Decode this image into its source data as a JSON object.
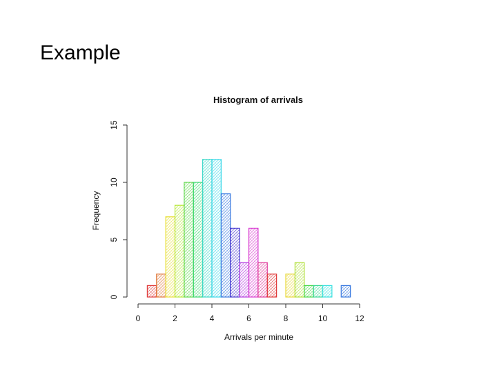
{
  "slide": {
    "title": "Example"
  },
  "chart_data": {
    "type": "bar",
    "title": "Histogram of arrivals",
    "xlabel": "Arrivals per minute",
    "ylabel": "Frequency",
    "bins": [
      {
        "start": 0.5,
        "end": 1.0,
        "value": 1,
        "color": "#e03a3a"
      },
      {
        "start": 1.0,
        "end": 1.5,
        "value": 2,
        "color": "#e0793a"
      },
      {
        "start": 1.5,
        "end": 2.0,
        "value": 7,
        "color": "#e8e03a"
      },
      {
        "start": 2.0,
        "end": 2.5,
        "value": 8,
        "color": "#b8e83a"
      },
      {
        "start": 2.5,
        "end": 3.0,
        "value": 10,
        "color": "#5ed84a"
      },
      {
        "start": 3.0,
        "end": 3.5,
        "value": 10,
        "color": "#3ad86e"
      },
      {
        "start": 3.5,
        "end": 4.0,
        "value": 12,
        "color": "#3ad8c8"
      },
      {
        "start": 4.0,
        "end": 4.5,
        "value": 12,
        "color": "#3ad8e8"
      },
      {
        "start": 4.5,
        "end": 5.0,
        "value": 9,
        "color": "#3a7ae0"
      },
      {
        "start": 5.0,
        "end": 5.5,
        "value": 6,
        "color": "#4a3ad0"
      },
      {
        "start": 5.5,
        "end": 6.0,
        "value": 3,
        "color": "#b23ae0"
      },
      {
        "start": 6.0,
        "end": 6.5,
        "value": 6,
        "color": "#d83ad0"
      },
      {
        "start": 6.5,
        "end": 7.0,
        "value": 3,
        "color": "#e03a9a"
      },
      {
        "start": 7.0,
        "end": 7.5,
        "value": 2,
        "color": "#e03a3a"
      },
      {
        "start": 7.5,
        "end": 8.0,
        "value": 0,
        "color": "#e07a3a"
      },
      {
        "start": 8.0,
        "end": 8.5,
        "value": 2,
        "color": "#e8d83a"
      },
      {
        "start": 8.5,
        "end": 9.0,
        "value": 3,
        "color": "#b0e03a"
      },
      {
        "start": 9.0,
        "end": 9.5,
        "value": 1,
        "color": "#4ad84a"
      },
      {
        "start": 9.5,
        "end": 10.0,
        "value": 1,
        "color": "#3ad894"
      },
      {
        "start": 10.0,
        "end": 10.5,
        "value": 1,
        "color": "#3ae0e0"
      },
      {
        "start": 10.5,
        "end": 11.0,
        "value": 0,
        "color": "#3ab0e0"
      },
      {
        "start": 11.0,
        "end": 11.5,
        "value": 1,
        "color": "#3a7ae0"
      }
    ],
    "xlim": [
      0,
      12
    ],
    "ylim": [
      0,
      15
    ],
    "xticks": [
      "0",
      "2",
      "4",
      "6",
      "8",
      "10",
      "12"
    ],
    "yticks": [
      "0",
      "5",
      "10",
      "15"
    ],
    "xtick_values": [
      0,
      2,
      4,
      6,
      8,
      10,
      12
    ],
    "ytick_values": [
      0,
      5,
      10,
      15
    ],
    "grid": false
  }
}
